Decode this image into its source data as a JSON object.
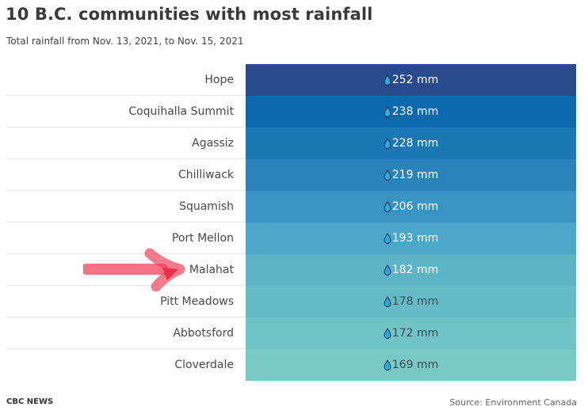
{
  "chart_data": {
    "type": "table",
    "title": "10 B.C. communities with most rainfall",
    "subtitle": "Total rainfall from Nov. 13, 2021, to Nov. 15, 2021",
    "unit": "mm",
    "categories": [
      "Hope",
      "Coquihalla Summit",
      "Agassiz",
      "Chilliwack",
      "Squamish",
      "Port Mellon",
      "Malahat",
      "Pitt Meadows",
      "Abbotsford",
      "Cloverdale"
    ],
    "values": [
      252,
      238,
      228,
      219,
      206,
      193,
      182,
      178,
      172,
      169
    ],
    "value_labels": [
      "252 mm",
      "238 mm",
      "228 mm",
      "219 mm",
      "206 mm",
      "193 mm",
      "182 mm",
      "178 mm",
      "172 mm",
      "169 mm"
    ],
    "colors": [
      "#294b8e",
      "#0c69ad",
      "#1c78b5",
      "#2a83bb",
      "#3993c3",
      "#4ca7c9",
      "#5eb4c6",
      "#65bcc6",
      "#70c4c5",
      "#78c9c6"
    ],
    "text_colors": [
      "#ffffff",
      "#ffffff",
      "#ffffff",
      "#ffffff",
      "#ffffff",
      "#ffffff",
      "#ffffff",
      "#3d4a55",
      "#3d4a55",
      "#3d4a55"
    ],
    "highlight": "Malahat",
    "annotation_color": "#f0435a"
  },
  "footer": {
    "credit": "CBC NEWS",
    "source": "Source: Environment Canada"
  },
  "icons": {
    "value_icon": "water-drop-icon",
    "annotation": "red-arrow-icon"
  }
}
